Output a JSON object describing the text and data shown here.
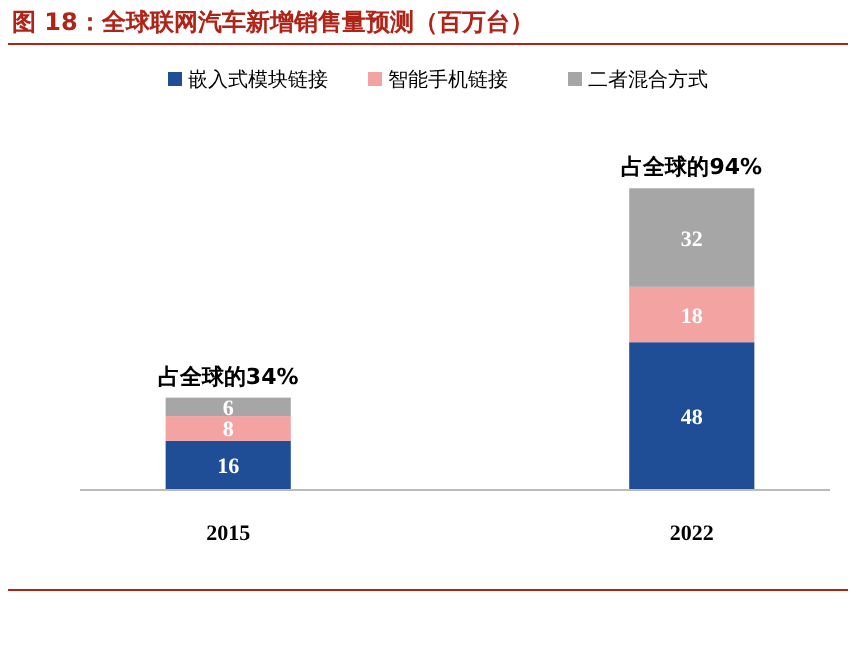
{
  "chart_data": {
    "type": "bar",
    "title": "图 18：全球联网汽车新增销售量预测（百万台）",
    "categories": [
      "2015",
      "2022"
    ],
    "stacked": true,
    "data_labels": true,
    "legend": "top",
    "series": [
      {
        "name": "嵌入式模块链接",
        "color": "#1f4e96",
        "values": [
          16,
          48
        ]
      },
      {
        "name": "智能手机链接",
        "color": "#f4a3a3",
        "values": [
          8,
          18
        ]
      },
      {
        "name": "二者混合方式",
        "color": "#a6a6a6",
        "values": [
          6,
          32
        ]
      }
    ],
    "annotations": [
      {
        "text": "占全球的34%",
        "x": "2015",
        "y": 30
      },
      {
        "text": "占全球的94%",
        "x": "2022",
        "y": 98
      }
    ]
  }
}
